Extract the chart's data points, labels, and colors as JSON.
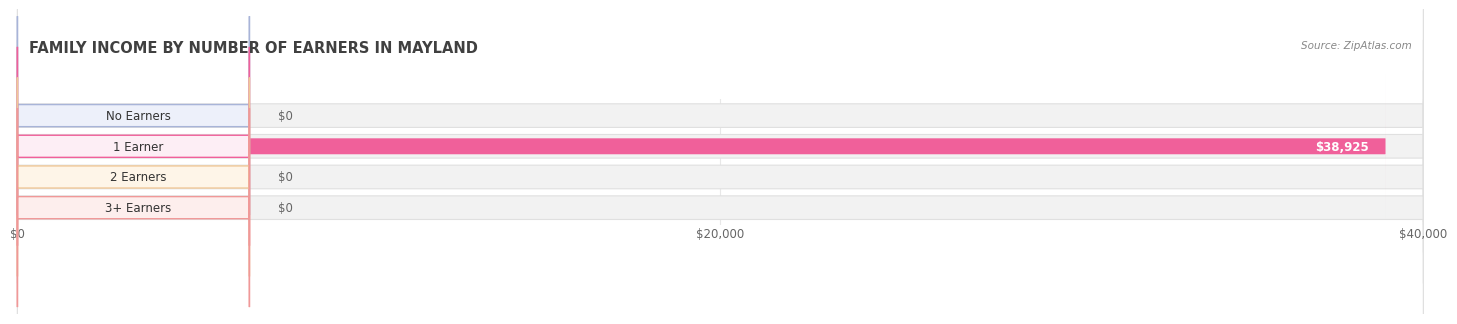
{
  "title": "FAMILY INCOME BY NUMBER OF EARNERS IN MAYLAND",
  "source": "Source: ZipAtlas.com",
  "categories": [
    "No Earners",
    "1 Earner",
    "2 Earners",
    "3+ Earners"
  ],
  "values": [
    0,
    38925,
    0,
    0
  ],
  "bar_colors": [
    "#a8b4d8",
    "#f0609a",
    "#f0c898",
    "#f09898"
  ],
  "label_bg_colors": [
    "#edf0fa",
    "#fdeef5",
    "#fef5e8",
    "#fdeeed"
  ],
  "label_border_colors": [
    "#a8b4d8",
    "#f0609a",
    "#f0c898",
    "#f09898"
  ],
  "value_label_color": "#666666",
  "xlim": [
    0,
    40000
  ],
  "xticks": [
    0,
    20000,
    40000
  ],
  "xtick_labels": [
    "$0",
    "$20,000",
    "$40,000"
  ],
  "background_color": "#ffffff",
  "grid_color": "#e8e8e8",
  "title_color": "#404040",
  "title_fontsize": 10.5,
  "bar_height": 0.52,
  "track_color": "#f2f2f2",
  "track_border_color": "#e0e0e0"
}
